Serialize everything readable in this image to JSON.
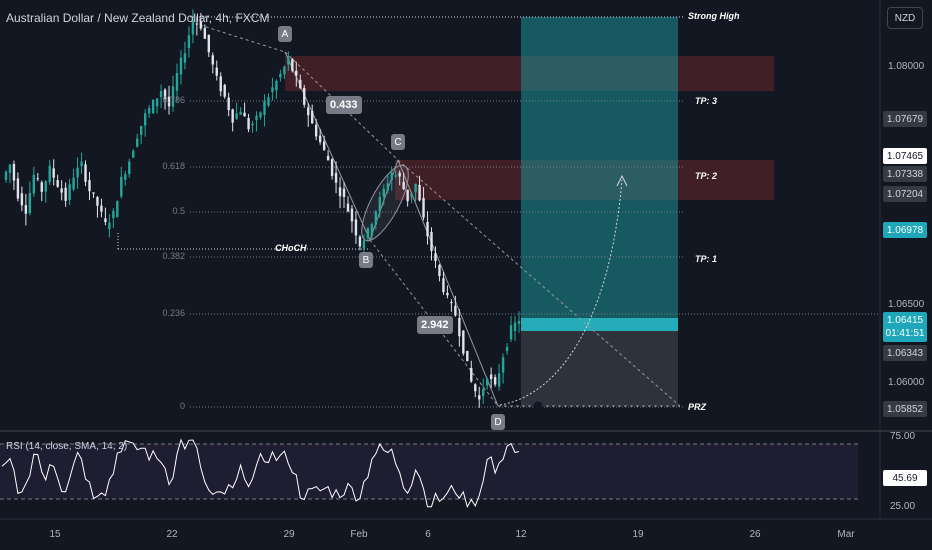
{
  "symbol_title": "Australian Dollar / New Zealand Dollar, 4h, FXCM",
  "currency_button": "NZD",
  "rsi_title": "RSI (14, close, SMA, 14, 2)",
  "price_axis": {
    "labels": [
      "1.08000",
      "1.06500",
      "1.06000"
    ],
    "tags": [
      {
        "value": "1.07679",
        "style": "gray"
      },
      {
        "value": "1.07465",
        "style": "white"
      },
      {
        "value": "1.07338",
        "style": "gray"
      },
      {
        "value": "1.07204",
        "style": "gray"
      },
      {
        "value": "1.06978",
        "style": "blue"
      },
      {
        "value": "1.06343",
        "style": "gray"
      },
      {
        "value": "1.05852",
        "style": "gray"
      }
    ],
    "current_price": "1.06415",
    "countdown": "01:41:51"
  },
  "rsi_axis": {
    "upper": "75.00",
    "lower": "25.00",
    "value": "45.69"
  },
  "date_axis": [
    "15",
    "22",
    "29",
    "Feb",
    "6",
    "12",
    "19",
    "26",
    "Mar"
  ],
  "pattern_points": [
    "A",
    "B",
    "C",
    "D"
  ],
  "ratios": [
    "0.433",
    "2.942"
  ],
  "level_labels": {
    "strong_high": "Strong High",
    "tp3": "TP: 3",
    "tp2": "TP: 2",
    "tp1": "TP: 1",
    "prz": "PRZ",
    "choch": "CHoCH"
  },
  "fib_levels": [
    "0.786",
    "0.618",
    "0.5",
    "0.382",
    "0.236",
    "0"
  ],
  "colors": {
    "background": "#131722",
    "candle_up": "#26a69a",
    "candle_down": "#e0e3eb",
    "target_zone": "#1a8f96",
    "stop_zone": "#363a45",
    "supply_zone": "#4a2128",
    "rsi_line": "#ffffff"
  },
  "chart_data": {
    "type": "candlestick",
    "title": "Australian Dollar / New Zealand Dollar, 4h, FXCM",
    "ylim": [
      1.0568,
      1.0855
    ],
    "close_path": [
      1.0735,
      1.0745,
      1.0725,
      1.0715,
      1.0738,
      1.0728,
      1.0742,
      1.0732,
      1.0722,
      1.0738,
      1.0745,
      1.0728,
      1.0718,
      1.0705,
      1.0712,
      1.0735,
      1.0748,
      1.0765,
      1.0778,
      1.0786,
      1.0795,
      1.0784,
      1.0805,
      1.0822,
      1.0842,
      1.0838,
      1.082,
      1.0802,
      1.079,
      1.0776,
      1.0782,
      1.077,
      1.0775,
      1.0786,
      1.0796,
      1.0805,
      1.0815,
      1.0802,
      1.0786,
      1.0772,
      1.076,
      1.0748,
      1.0732,
      1.0722,
      1.0708,
      1.0692,
      1.07,
      1.0715,
      1.0728,
      1.074,
      1.0736,
      1.0722,
      1.0732,
      1.0708,
      1.0688,
      1.067,
      1.0655,
      1.0645,
      1.0622,
      1.06,
      1.0588,
      1.0605,
      1.0596,
      1.0618,
      1.0635,
      1.0642
    ]
  }
}
